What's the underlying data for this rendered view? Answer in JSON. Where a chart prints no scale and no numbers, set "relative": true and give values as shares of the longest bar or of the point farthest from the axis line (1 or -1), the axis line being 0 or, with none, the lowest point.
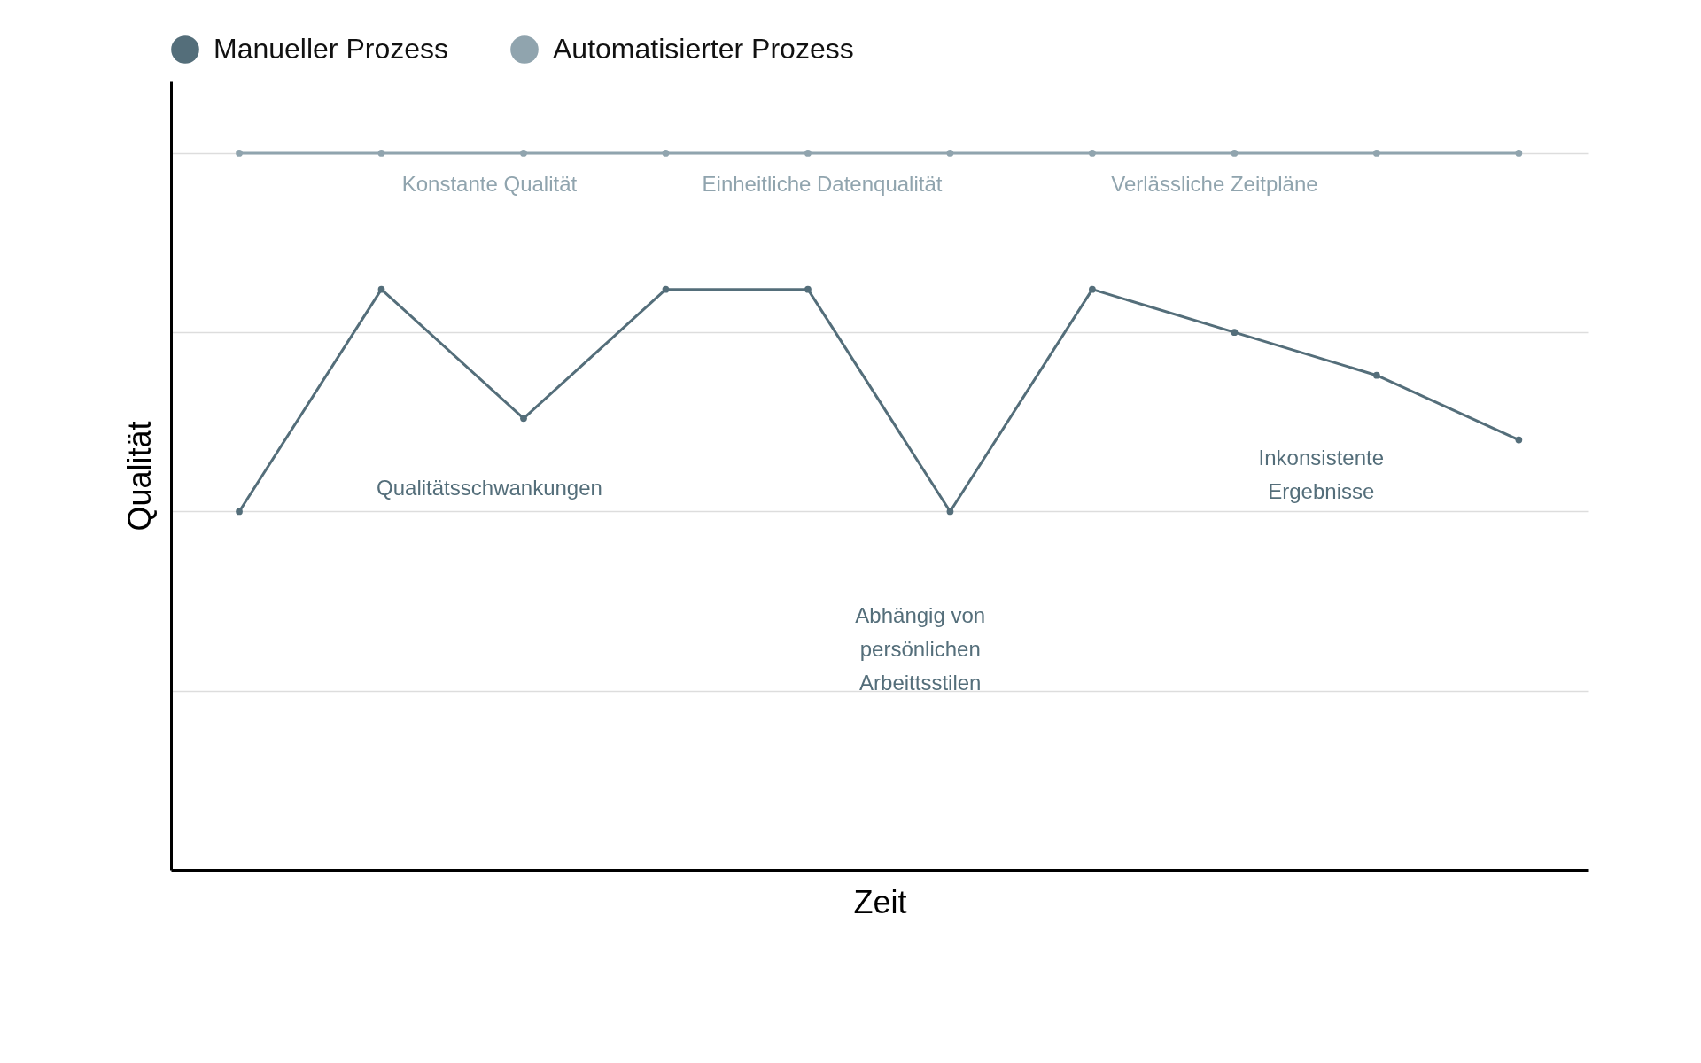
{
  "chart_data": {
    "type": "line",
    "relative": true,
    "xlabel": "Zeit",
    "ylabel": "Qualität",
    "categories": [
      null,
      null,
      null,
      null,
      null,
      null,
      null,
      null,
      null,
      null
    ],
    "series": [
      {
        "name": "Manueller Prozess",
        "color": "#546e7a",
        "values": [
          0.5,
          0.81,
          0.63,
          0.81,
          0.81,
          0.5,
          0.81,
          0.75,
          0.69,
          0.6
        ]
      },
      {
        "name": "Automatisierter Prozess",
        "color": "#90a4ae",
        "values": [
          1,
          1,
          1,
          1,
          1,
          1,
          1,
          1,
          1,
          1
        ]
      }
    ],
    "annotations": [
      "Konstante Qualität",
      "Einheitliche Datenqualität",
      "Verlässliche Zeitpläne",
      "Qualitätsschwankungen",
      "Abhängig von\npersönlichen\nArbeittsstilen",
      "Inkonsistente\nErgebnisse"
    ],
    "legend": "top",
    "grid": "y",
    "marker": "circle",
    "line_style": "solid"
  }
}
